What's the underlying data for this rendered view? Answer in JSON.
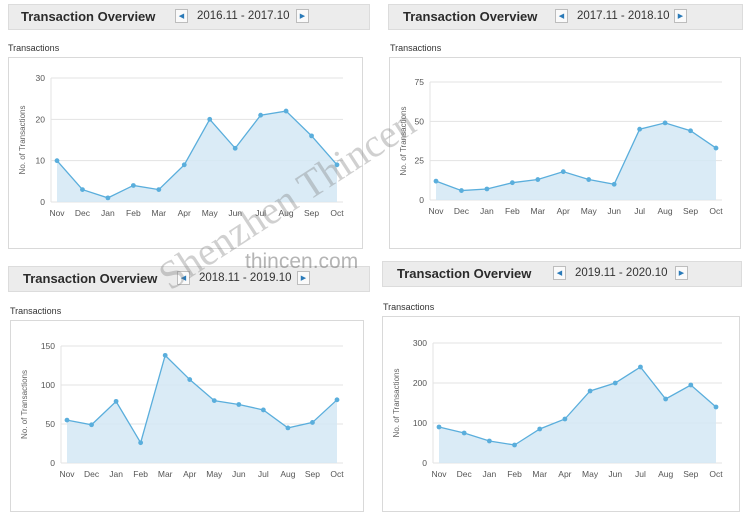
{
  "panels": [
    {
      "title": "Transaction Overview",
      "range": "2016.11 - 2017.10",
      "chart_heading": "Transactions"
    },
    {
      "title": "Transaction Overview",
      "range": "2017.11 - 2018.10",
      "chart_heading": "Transactions"
    },
    {
      "title": "Transaction Overview",
      "range": "2018.11 - 2019.10",
      "chart_heading": "Transactions"
    },
    {
      "title": "Transaction Overview",
      "range": "2019.11 - 2020.10",
      "chart_heading": "Transactions"
    }
  ],
  "nav": {
    "prev_icon": "chevron-left-icon",
    "next_icon": "chevron-right-icon"
  },
  "watermark": {
    "url": "thincen.com",
    "brand": "Shenzhen Thincen"
  },
  "colors": {
    "line": "#5aaedc",
    "fill": "#d3e8f5",
    "grid": "#e3e3e3"
  },
  "chart_data": [
    {
      "type": "area",
      "categories": [
        "Nov",
        "Dec",
        "Jan",
        "Feb",
        "Mar",
        "Apr",
        "May",
        "Jun",
        "Jul",
        "Aug",
        "Sep",
        "Oct"
      ],
      "series": [
        {
          "values": [
            10,
            3,
            1,
            4,
            3,
            9,
            20,
            13,
            21,
            22,
            16,
            9
          ]
        }
      ],
      "ylabel": "No. of Transactions",
      "ylim": [
        0,
        30
      ],
      "yticks": [
        0,
        10,
        20,
        30
      ],
      "grid": true
    },
    {
      "type": "area",
      "categories": [
        "Nov",
        "Dec",
        "Jan",
        "Feb",
        "Mar",
        "Apr",
        "May",
        "Jun",
        "Jul",
        "Aug",
        "Sep",
        "Oct"
      ],
      "series": [
        {
          "values": [
            12,
            6,
            7,
            11,
            13,
            18,
            13,
            10,
            45,
            49,
            44,
            33
          ]
        }
      ],
      "ylabel": "No. of Transactions",
      "ylim": [
        0,
        75
      ],
      "yticks": [
        0,
        25,
        50,
        75
      ],
      "grid": true
    },
    {
      "type": "area",
      "categories": [
        "Nov",
        "Dec",
        "Jan",
        "Feb",
        "Mar",
        "Apr",
        "May",
        "Jun",
        "Jul",
        "Aug",
        "Sep",
        "Oct"
      ],
      "series": [
        {
          "values": [
            55,
            49,
            79,
            26,
            138,
            107,
            80,
            75,
            68,
            45,
            52,
            81
          ]
        }
      ],
      "ylabel": "No. of Transactions",
      "ylim": [
        0,
        150
      ],
      "yticks": [
        0,
        50,
        100,
        150
      ],
      "grid": true
    },
    {
      "type": "area",
      "categories": [
        "Nov",
        "Dec",
        "Jan",
        "Feb",
        "Mar",
        "Apr",
        "May",
        "Jun",
        "Jul",
        "Aug",
        "Sep",
        "Oct"
      ],
      "series": [
        {
          "values": [
            90,
            75,
            55,
            45,
            85,
            110,
            180,
            200,
            240,
            160,
            195,
            140
          ]
        }
      ],
      "ylabel": "No. of Transactions",
      "ylim": [
        0,
        300
      ],
      "yticks": [
        0,
        100,
        200,
        300
      ],
      "grid": true
    }
  ]
}
